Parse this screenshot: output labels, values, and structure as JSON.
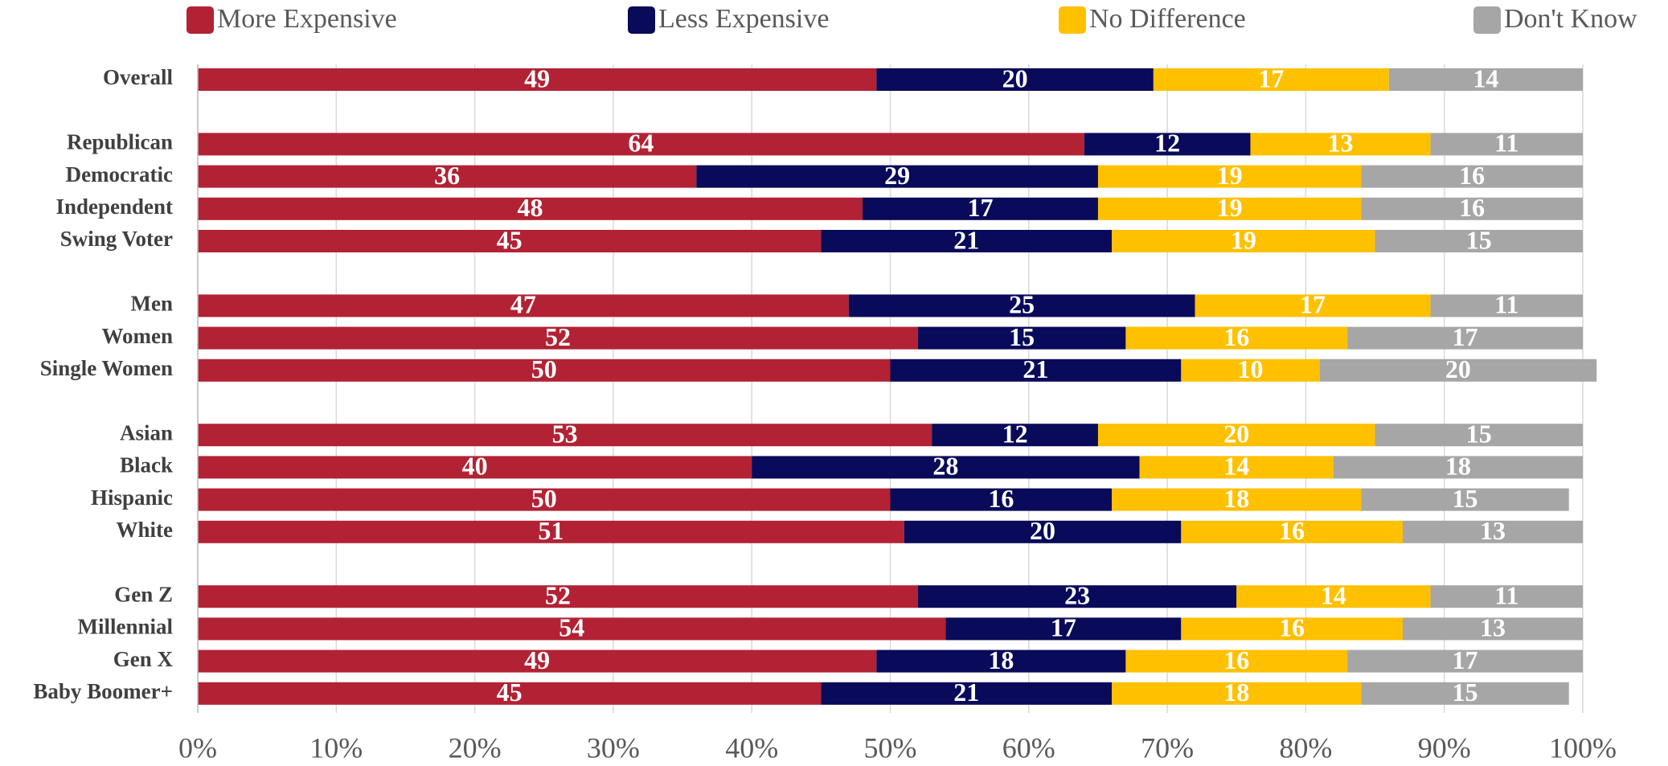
{
  "chart_data": {
    "type": "bar",
    "orientation": "horizontal",
    "stacked": true,
    "categories": [
      "Overall",
      null,
      "Republican",
      "Democratic",
      "Independent",
      "Swing Voter",
      null,
      "Men",
      "Women",
      "Single Women",
      null,
      "Asian",
      "Black",
      "Hispanic",
      "White",
      null,
      "Gen Z",
      "Millennial",
      "Gen X",
      "Baby Boomer+"
    ],
    "series": [
      {
        "name": "More Expensive",
        "color": "#b22234",
        "values": [
          49,
          null,
          64,
          36,
          48,
          45,
          null,
          47,
          52,
          50,
          null,
          53,
          40,
          50,
          51,
          null,
          52,
          54,
          49,
          45
        ]
      },
      {
        "name": "Less Expensive",
        "color": "#0a0a5a",
        "values": [
          20,
          null,
          12,
          29,
          17,
          21,
          null,
          25,
          15,
          21,
          null,
          12,
          28,
          16,
          20,
          null,
          23,
          17,
          18,
          21
        ]
      },
      {
        "name": "No Difference",
        "color": "#ffc000",
        "values": [
          17,
          null,
          13,
          19,
          19,
          19,
          null,
          17,
          16,
          10,
          null,
          20,
          14,
          18,
          16,
          null,
          14,
          16,
          16,
          18
        ]
      },
      {
        "name": "Don't Know",
        "color": "#a6a6a6",
        "values": [
          14,
          null,
          11,
          16,
          16,
          15,
          null,
          11,
          17,
          20,
          null,
          15,
          18,
          15,
          13,
          null,
          11,
          13,
          17,
          15
        ]
      }
    ],
    "xlim": [
      0,
      100
    ],
    "xticks": [
      {
        "value": 0,
        "label": "0%"
      },
      {
        "value": 10,
        "label": "10%"
      },
      {
        "value": 20,
        "label": "20%"
      },
      {
        "value": 30,
        "label": "30%"
      },
      {
        "value": 40,
        "label": "40%"
      },
      {
        "value": 50,
        "label": "50%"
      },
      {
        "value": 60,
        "label": "60%"
      },
      {
        "value": 70,
        "label": "70%"
      },
      {
        "value": 80,
        "label": "80%"
      },
      {
        "value": 90,
        "label": "90%"
      },
      {
        "value": 100,
        "label": "100%"
      }
    ],
    "grid": true,
    "legend": "top"
  }
}
